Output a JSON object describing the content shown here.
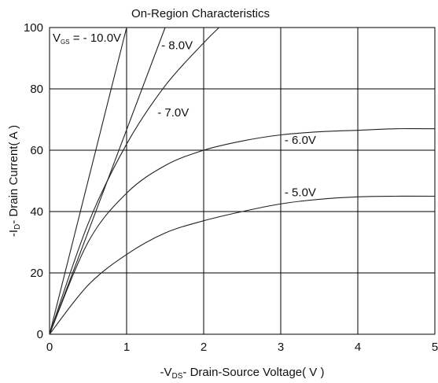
{
  "chart_data": {
    "type": "line",
    "title": "On-Region Characteristics",
    "xlabel": {
      "prefix": "-V",
      "sub": "DS",
      "text": "- Drain-Source Voltage( V )"
    },
    "ylabel": {
      "prefix": "-I",
      "sub": "D",
      "text": "- Drain Current( A )"
    },
    "xlim": [
      0,
      5
    ],
    "ylim": [
      0,
      100
    ],
    "x_ticks": [
      "0",
      "1",
      "2",
      "3",
      "4",
      "5"
    ],
    "y_ticks": [
      "0",
      "20",
      "40",
      "60",
      "80",
      "100"
    ],
    "grid": true,
    "legend_prefix": {
      "prefix": "V",
      "sub": "GS",
      "text": " = - 10.0V"
    },
    "series": [
      {
        "name": "- 10.0V",
        "x": [
          0,
          1.0
        ],
        "y": [
          0,
          100
        ]
      },
      {
        "name": "- 8.0V",
        "x": [
          0,
          1.5
        ],
        "y": [
          0,
          100
        ]
      },
      {
        "name": "- 7.0V",
        "x": [
          0,
          0.5,
          1.0,
          1.5,
          2.0,
          2.2
        ],
        "y": [
          0,
          36,
          62,
          81,
          95,
          100
        ]
      },
      {
        "name": "- 6.0V",
        "x": [
          0,
          0.5,
          1.0,
          1.5,
          2.0,
          2.5,
          3.0,
          3.5,
          4.0,
          4.5,
          5.0
        ],
        "y": [
          0,
          30,
          46,
          55,
          60,
          63,
          65,
          66,
          66.5,
          67,
          67
        ]
      },
      {
        "name": "- 5.0V",
        "x": [
          0,
          0.5,
          1.0,
          1.5,
          2.0,
          2.5,
          3.0,
          3.5,
          4.0,
          4.5,
          5.0
        ],
        "y": [
          0,
          16,
          26,
          33,
          37,
          40,
          42.5,
          44,
          44.8,
          45,
          45
        ]
      }
    ],
    "curve_labels": [
      {
        "text": "- 8.0V",
        "near": [
          1.45,
          93
        ]
      },
      {
        "text": "- 7.0V",
        "near": [
          1.4,
          71
        ]
      },
      {
        "text": "- 6.0V",
        "near": [
          3.05,
          62
        ]
      },
      {
        "text": "- 5.0V",
        "near": [
          3.05,
          45
        ]
      }
    ]
  }
}
